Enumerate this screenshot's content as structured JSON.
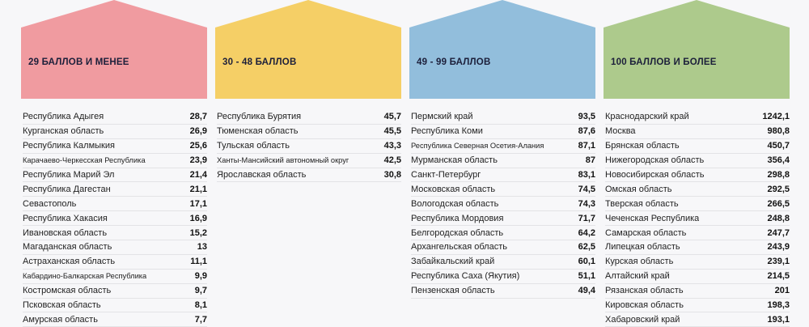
{
  "chart_data": {
    "type": "table",
    "groups": [
      {
        "label": "29 БАЛЛОВ И МЕНЕЕ",
        "color": "#f09ba0",
        "rows": [
          {
            "name": "Республика Адыгея",
            "value": "28,7"
          },
          {
            "name": "Курганская область",
            "value": "26,9"
          },
          {
            "name": "Республика Калмыкия",
            "value": "25,6"
          },
          {
            "name": "Карачаево-Черкесская Республика",
            "value": "23,9"
          },
          {
            "name": "Республика Марий Эл",
            "value": "21,4"
          },
          {
            "name": "Республика Дагестан",
            "value": "21,1"
          },
          {
            "name": "Севастополь",
            "value": "17,1"
          },
          {
            "name": "Республика Хакасия",
            "value": "16,9"
          },
          {
            "name": "Ивановская область",
            "value": "15,2"
          },
          {
            "name": "Магаданская область",
            "value": "13"
          },
          {
            "name": "Астраханская область",
            "value": "11,1"
          },
          {
            "name": "Кабардино-Балкарская Республика",
            "value": "9,9"
          },
          {
            "name": "Костромская область",
            "value": "9,7"
          },
          {
            "name": "Псковская область",
            "value": "8,1"
          },
          {
            "name": "Амурская область",
            "value": "7,7"
          }
        ]
      },
      {
        "label": "30 - 48 БАЛЛОВ",
        "color": "#f5cf66",
        "rows": [
          {
            "name": "Республика Бурятия",
            "value": "45,7"
          },
          {
            "name": "Тюменская область",
            "value": "45,5"
          },
          {
            "name": "Тульская область",
            "value": "43,3"
          },
          {
            "name": "Ханты-Мансийский автономный округ",
            "value": "42,5"
          },
          {
            "name": "Ярославская область",
            "value": "30,8"
          }
        ]
      },
      {
        "label": "49 - 99 БАЛЛОВ",
        "color": "#92bedc",
        "rows": [
          {
            "name": "Пермский край",
            "value": "93,5"
          },
          {
            "name": "Республика Коми",
            "value": "87,6"
          },
          {
            "name": "Республика Северная Осетия-Алания",
            "value": "87,1"
          },
          {
            "name": "Мурманская область",
            "value": "87"
          },
          {
            "name": "Санкт-Петербург",
            "value": "83,1"
          },
          {
            "name": "Московская область",
            "value": "74,5"
          },
          {
            "name": "Вологодская область",
            "value": "74,3"
          },
          {
            "name": "Республика Мордовия",
            "value": "71,7"
          },
          {
            "name": "Белгородская область",
            "value": "64,2"
          },
          {
            "name": "Архангельская область",
            "value": "62,5"
          },
          {
            "name": "Забайкальский край",
            "value": "60,1"
          },
          {
            "name": "Республика Саха (Якутия)",
            "value": "51,1"
          },
          {
            "name": "Пензенская область",
            "value": "49,4"
          }
        ]
      },
      {
        "label": "100 БАЛЛОВ И БОЛЕЕ",
        "color": "#adca8c",
        "rows": [
          {
            "name": "Краснодарский край",
            "value": "1242,1"
          },
          {
            "name": "Москва",
            "value": "980,8"
          },
          {
            "name": "Брянская область",
            "value": "450,7"
          },
          {
            "name": "Нижегородская область",
            "value": "356,4"
          },
          {
            "name": "Новосибирская область",
            "value": "298,8"
          },
          {
            "name": "Омская область",
            "value": "292,5"
          },
          {
            "name": "Тверская область",
            "value": "266,5"
          },
          {
            "name": "Чеченская Республика",
            "value": "248,8"
          },
          {
            "name": "Самарская область",
            "value": "247,7"
          },
          {
            "name": "Липецкая область",
            "value": "243,9"
          },
          {
            "name": "Курская область",
            "value": "239,1"
          },
          {
            "name": "Алтайский край",
            "value": "214,5"
          },
          {
            "name": "Рязанская область",
            "value": "201"
          },
          {
            "name": "Кировская область",
            "value": "198,3"
          },
          {
            "name": "Хабаровский край",
            "value": "193,1"
          }
        ]
      }
    ]
  }
}
